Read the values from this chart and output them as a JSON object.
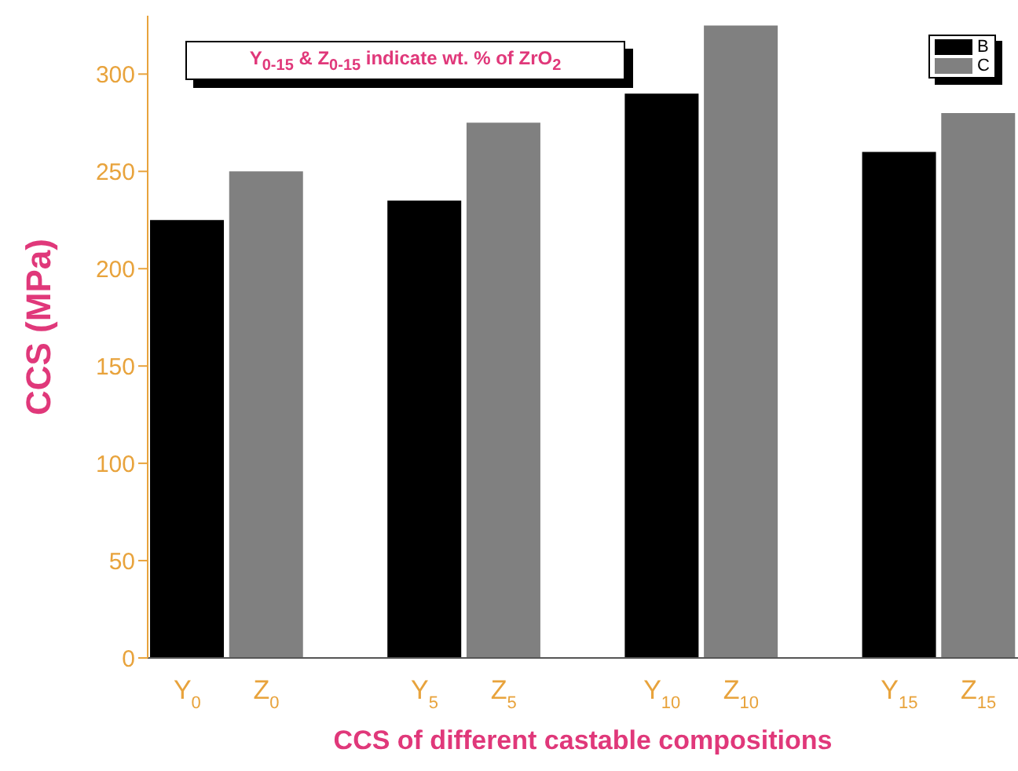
{
  "chart_data": {
    "type": "bar",
    "xlabel": "CCS of different castable compositions",
    "ylabel": "CCS (MPa)",
    "categories": [
      "Y$_{0}$",
      "Z$_{0}$",
      null,
      "Y$_{5}$",
      "Z$_{5}$",
      null,
      "Y$_{10}$",
      "Z$_{10}$",
      null,
      "Y$_{15}$",
      "Z$_{15}$"
    ],
    "series": [
      {
        "name": "B",
        "color": "#000000",
        "values": [
          225,
          null,
          null,
          235,
          null,
          null,
          290,
          null,
          null,
          260,
          null
        ]
      },
      {
        "name": "C",
        "color": "#808080",
        "values": [
          null,
          250,
          null,
          null,
          275,
          null,
          null,
          325,
          null,
          null,
          280
        ]
      }
    ],
    "ylim": [
      0,
      330
    ],
    "yticks": [
      0,
      50,
      100,
      150,
      200,
      250,
      300
    ],
    "grid": false,
    "legend": "top right",
    "annotations": [
      "Y$_{0-15}$ & Z$_{0-15}$ indicate wt. % of ZrO$_{2}$"
    ]
  }
}
